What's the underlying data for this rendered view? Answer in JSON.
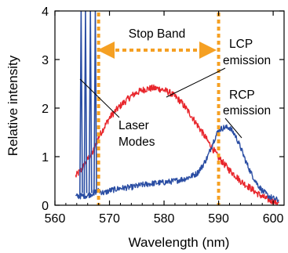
{
  "chart_data": {
    "type": "line",
    "title": "",
    "xlabel": "Wavelength (nm)",
    "ylabel": "Relative intensity",
    "xlim": [
      560,
      602
    ],
    "ylim": [
      0,
      4
    ],
    "xticks": [
      560,
      570,
      580,
      590,
      600
    ],
    "yticks": [
      0,
      1,
      2,
      3,
      4
    ],
    "grid": false,
    "series": [
      {
        "name": "LCP emission",
        "color": "#e8252b",
        "x": [
          563.8,
          565,
          566,
          567,
          568,
          569,
          570,
          571,
          572,
          573,
          574,
          575,
          576,
          577,
          578,
          579,
          580,
          581,
          582,
          583,
          584,
          585,
          586,
          587,
          588,
          589,
          590,
          591,
          592,
          593,
          594,
          595,
          596,
          597,
          598,
          599,
          600,
          601
        ],
        "values": [
          0.6,
          0.75,
          0.95,
          1.1,
          1.4,
          1.6,
          1.8,
          1.93,
          2.05,
          2.15,
          2.25,
          2.32,
          2.37,
          2.4,
          2.41,
          2.4,
          2.37,
          2.32,
          2.24,
          2.14,
          2.0,
          1.84,
          1.67,
          1.5,
          1.32,
          1.15,
          0.98,
          0.85,
          0.72,
          0.62,
          0.5,
          0.42,
          0.34,
          0.25,
          0.18,
          0.12,
          0.08,
          0.05
        ]
      },
      {
        "name": "RCP emission",
        "color": "#2a4da3",
        "x": [
          563.8,
          566,
          568,
          569,
          570,
          572,
          574,
          576,
          578,
          580,
          582,
          584,
          586,
          587,
          588,
          589,
          590,
          591,
          592,
          593,
          594,
          595,
          596,
          597,
          598,
          599,
          600,
          601
        ],
        "values": [
          0.18,
          0.2,
          0.3,
          0.25,
          0.3,
          0.35,
          0.37,
          0.42,
          0.45,
          0.47,
          0.5,
          0.55,
          0.65,
          0.8,
          1.0,
          1.3,
          1.55,
          1.6,
          1.6,
          1.45,
          1.2,
          0.9,
          0.65,
          0.45,
          0.3,
          0.2,
          0.14,
          0.1
        ]
      },
      {
        "name": "Laser Modes",
        "color": "#2a4da3",
        "peaks": [
          {
            "x": 564.8,
            "y": 4.0
          },
          {
            "x": 565.6,
            "y": 4.0
          },
          {
            "x": 566.5,
            "y": 4.0
          },
          {
            "x": 567.4,
            "y": 4.0
          }
        ]
      }
    ],
    "stop_band_edges": [
      568,
      590
    ],
    "annotations": {
      "stop_band": "Stop Band",
      "lcp_line1": "LCP",
      "lcp_line2": "emission",
      "rcp_line1": "RCP",
      "rcp_line2": "emission",
      "laser_line1": "Laser",
      "laser_line2": "Modes"
    },
    "colors": {
      "stop_band_marker": "#f5a023",
      "lcp": "#e8252b",
      "rcp": "#2a4da3"
    }
  }
}
